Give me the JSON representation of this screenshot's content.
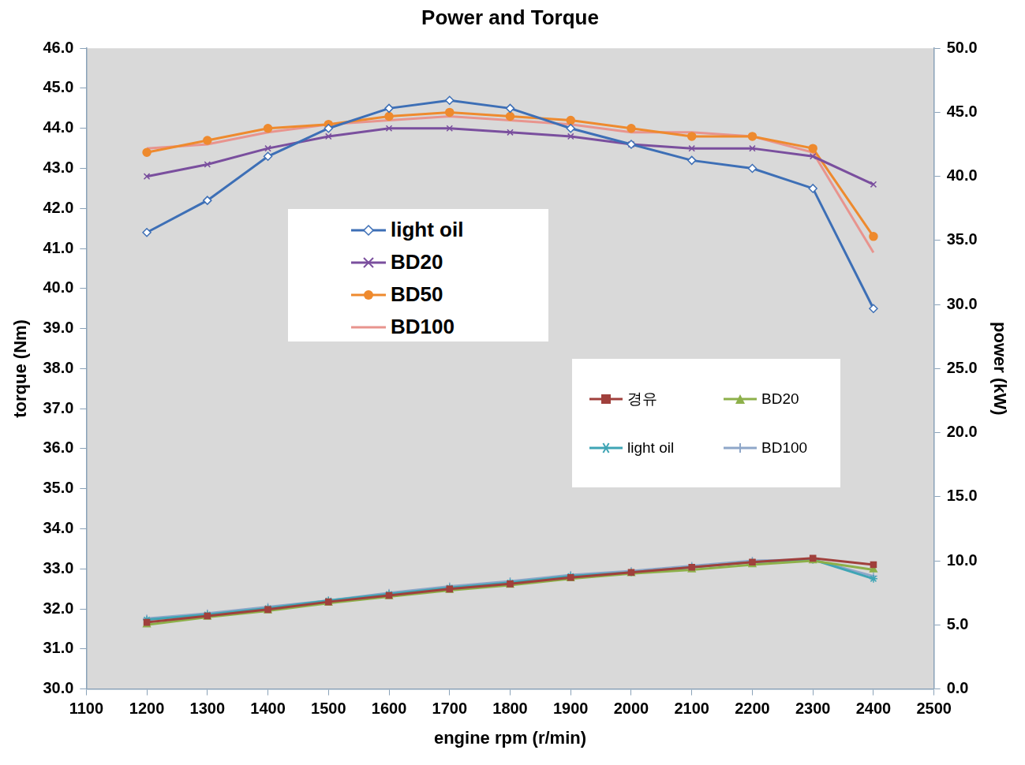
{
  "chart_data": {
    "type": "line",
    "title": "Power and Torque",
    "x_label": "engine rpm (r/min)",
    "y_label": "torque (Nm)",
    "y2_label": "power (kW)",
    "x": [
      1200,
      1300,
      1400,
      1500,
      1600,
      1700,
      1800,
      1900,
      2000,
      2100,
      2200,
      2300,
      2400
    ],
    "xlim": [
      1100,
      2500
    ],
    "xticks": [
      1100,
      1200,
      1300,
      1400,
      1500,
      1600,
      1700,
      1800,
      1900,
      2000,
      2100,
      2200,
      2300,
      2400,
      2500
    ],
    "ylim": [
      30,
      46
    ],
    "yticks": [
      {
        "value": 30,
        "label": "30.0"
      },
      {
        "value": 31,
        "label": "31.0"
      },
      {
        "value": 32,
        "label": "32.0"
      },
      {
        "value": 33,
        "label": "33.0"
      },
      {
        "value": 34,
        "label": "34.0"
      },
      {
        "value": 35,
        "label": "35.0"
      },
      {
        "value": 36,
        "label": "36.0"
      },
      {
        "value": 37,
        "label": "37.0"
      },
      {
        "value": 38,
        "label": "38.0"
      },
      {
        "value": 39,
        "label": "39.0"
      },
      {
        "value": 40,
        "label": "40.0"
      },
      {
        "value": 41,
        "label": "41.0"
      },
      {
        "value": 42,
        "label": "42.0"
      },
      {
        "value": 43,
        "label": "43.0"
      },
      {
        "value": 44,
        "label": "44.0"
      },
      {
        "value": 45,
        "label": "45.0"
      },
      {
        "value": 46,
        "label": "46.0"
      }
    ],
    "y2lim": [
      0,
      50
    ],
    "y2ticks": [
      {
        "value": 0,
        "label": "0.0"
      },
      {
        "value": 5,
        "label": "5.0"
      },
      {
        "value": 10,
        "label": "10.0"
      },
      {
        "value": 15,
        "label": "15.0"
      },
      {
        "value": 20,
        "label": "20.0"
      },
      {
        "value": 25,
        "label": "25.0"
      },
      {
        "value": 30,
        "label": "30.0"
      },
      {
        "value": 35,
        "label": "35.0"
      },
      {
        "value": 40,
        "label": "40.0"
      },
      {
        "value": 45,
        "label": "45.0"
      },
      {
        "value": 50,
        "label": "50.0"
      }
    ],
    "grid": false,
    "series": [
      {
        "name": "light oil",
        "color": "#3d6fb6",
        "marker": "diamond",
        "values": [
          41.4,
          42.2,
          43.3,
          44.0,
          44.5,
          44.7,
          44.5,
          44.0,
          43.6,
          43.2,
          43.0,
          42.5,
          39.5
        ]
      },
      {
        "name": "BD20",
        "color": "#7a4f9e",
        "marker": "x",
        "values": [
          42.8,
          43.1,
          43.5,
          43.8,
          44.0,
          44.0,
          43.9,
          43.8,
          43.6,
          43.5,
          43.5,
          43.3,
          42.6
        ]
      },
      {
        "name": "BD50",
        "color": "#ee8a2e",
        "marker": "circle",
        "values": [
          43.4,
          43.7,
          44.0,
          44.1,
          44.3,
          44.4,
          44.3,
          44.2,
          44.0,
          43.8,
          43.8,
          43.5,
          41.3
        ]
      },
      {
        "name": "BD100",
        "color": "#e8948e",
        "marker": "none",
        "values": [
          43.5,
          43.6,
          43.9,
          44.1,
          44.2,
          44.3,
          44.2,
          44.1,
          43.9,
          43.9,
          43.8,
          43.4,
          40.9
        ]
      },
      {
        "name": "경유",
        "color": "#a0403c",
        "marker": "square",
        "axis": "y2",
        "values": [
          5.2,
          5.7,
          6.2,
          6.8,
          7.3,
          7.8,
          8.2,
          8.7,
          9.1,
          9.5,
          9.9,
          10.2,
          9.7
        ]
      },
      {
        "name": "BD20",
        "color": "#8db04a",
        "marker": "triangle",
        "axis": "y2",
        "values": [
          5.0,
          5.6,
          6.1,
          6.7,
          7.2,
          7.7,
          8.1,
          8.6,
          9.0,
          9.3,
          9.7,
          10.0,
          9.3
        ]
      },
      {
        "name": "light oil",
        "color": "#3fa5b5",
        "marker": "star",
        "axis": "y2",
        "values": [
          5.4,
          5.8,
          6.3,
          6.9,
          7.4,
          7.9,
          8.3,
          8.8,
          9.1,
          9.5,
          9.9,
          10.1,
          8.6
        ]
      },
      {
        "name": "BD100",
        "color": "#8fa7c9",
        "marker": "cross",
        "axis": "y2",
        "values": [
          5.5,
          5.9,
          6.4,
          6.9,
          7.5,
          8.0,
          8.4,
          8.9,
          9.2,
          9.6,
          10.0,
          10.1,
          8.8
        ]
      }
    ]
  }
}
